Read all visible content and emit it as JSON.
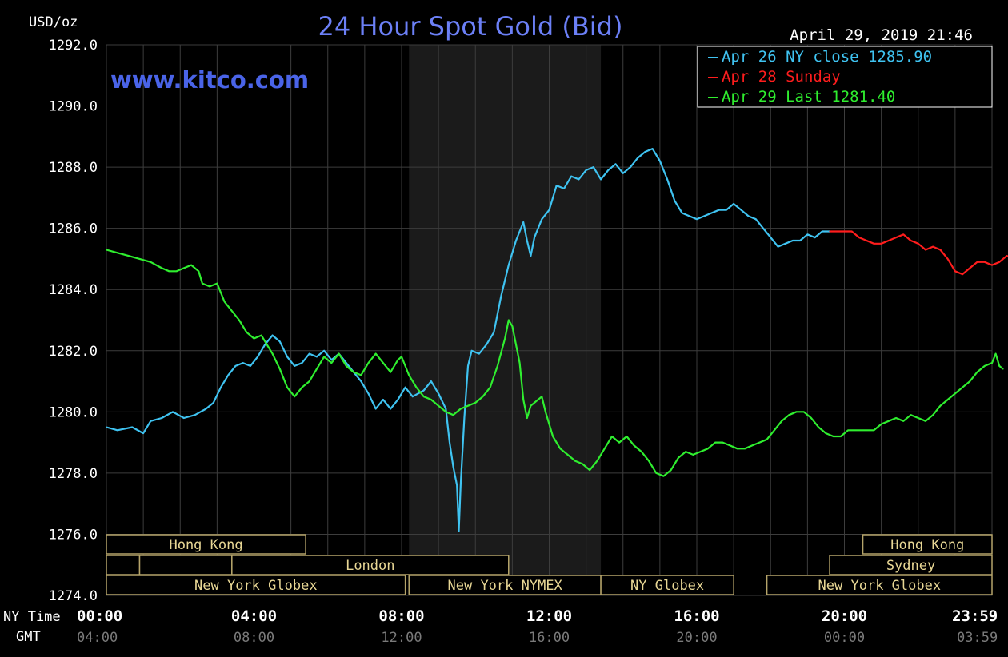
{
  "chart_data": {
    "type": "line",
    "title": "24 Hour Spot Gold (Bid)",
    "watermark": "www.kitco.com",
    "timestamp": "April 29, 2019 21:46",
    "ylabel": "USD/oz",
    "ylim": [
      1274.0,
      1292.0
    ],
    "yticks": [
      1274.0,
      1276.0,
      1278.0,
      1280.0,
      1282.0,
      1284.0,
      1286.0,
      1288.0,
      1290.0,
      1292.0
    ],
    "ytick_labels": [
      "1274.0",
      "1276.0",
      "1278.0",
      "1280.0",
      "1282.0",
      "1284.0",
      "1286.0",
      "1288.0",
      "1290.0",
      "1292.0"
    ],
    "xlim_hours": [
      0,
      24
    ],
    "x_row_label": "NY Time",
    "gmt_row_label": "GMT",
    "xticks_hours": [
      0,
      4,
      8,
      12,
      16,
      20,
      23.983
    ],
    "xtick_labels_ny": [
      "00:00",
      "04:00",
      "08:00",
      "12:00",
      "16:00",
      "20:00",
      "23:59"
    ],
    "xtick_labels_gmt": [
      "04:00",
      "08:00",
      "12:00",
      "16:00",
      "20:00",
      "00:00",
      "03:59"
    ],
    "grid": true,
    "shaded_region_hours": [
      8.2,
      13.4
    ],
    "legend_position": "top-right",
    "legend": [
      {
        "text": "Apr 26 NY close 1285.90",
        "color": "#3fc3f1"
      },
      {
        "text": "Apr 28 Sunday",
        "color": "#ff1d1d"
      },
      {
        "text": "Apr 29 Last 1281.40",
        "color": "#2fee2f"
      }
    ],
    "series": [
      {
        "name": "Apr 26",
        "color": "#3fc3f1",
        "points": [
          [
            0,
            1279.5
          ],
          [
            0.3,
            1279.4
          ],
          [
            0.7,
            1279.5
          ],
          [
            1.0,
            1279.3
          ],
          [
            1.2,
            1279.7
          ],
          [
            1.5,
            1279.8
          ],
          [
            1.8,
            1280.0
          ],
          [
            2.1,
            1279.8
          ],
          [
            2.4,
            1279.9
          ],
          [
            2.7,
            1280.1
          ],
          [
            2.9,
            1280.3
          ],
          [
            3.1,
            1280.8
          ],
          [
            3.3,
            1281.2
          ],
          [
            3.5,
            1281.5
          ],
          [
            3.7,
            1281.6
          ],
          [
            3.9,
            1281.5
          ],
          [
            4.1,
            1281.8
          ],
          [
            4.3,
            1282.2
          ],
          [
            4.5,
            1282.5
          ],
          [
            4.7,
            1282.3
          ],
          [
            4.9,
            1281.8
          ],
          [
            5.1,
            1281.5
          ],
          [
            5.3,
            1281.6
          ],
          [
            5.5,
            1281.9
          ],
          [
            5.7,
            1281.8
          ],
          [
            5.9,
            1282.0
          ],
          [
            6.1,
            1281.7
          ],
          [
            6.3,
            1281.9
          ],
          [
            6.5,
            1281.6
          ],
          [
            6.7,
            1281.3
          ],
          [
            6.9,
            1281.0
          ],
          [
            7.1,
            1280.6
          ],
          [
            7.3,
            1280.1
          ],
          [
            7.5,
            1280.4
          ],
          [
            7.7,
            1280.1
          ],
          [
            7.9,
            1280.4
          ],
          [
            8.1,
            1280.8
          ],
          [
            8.3,
            1280.5
          ],
          [
            8.6,
            1280.7
          ],
          [
            8.8,
            1281.0
          ],
          [
            9.0,
            1280.6
          ],
          [
            9.2,
            1280.1
          ],
          [
            9.3,
            1279.0
          ],
          [
            9.4,
            1278.2
          ],
          [
            9.5,
            1277.6
          ],
          [
            9.55,
            1276.1
          ],
          [
            9.6,
            1277.6
          ],
          [
            9.7,
            1279.8
          ],
          [
            9.8,
            1281.5
          ],
          [
            9.9,
            1282.0
          ],
          [
            10.1,
            1281.9
          ],
          [
            10.3,
            1282.2
          ],
          [
            10.5,
            1282.6
          ],
          [
            10.7,
            1283.8
          ],
          [
            10.9,
            1284.8
          ],
          [
            11.1,
            1285.6
          ],
          [
            11.3,
            1286.2
          ],
          [
            11.4,
            1285.6
          ],
          [
            11.5,
            1285.1
          ],
          [
            11.6,
            1285.7
          ],
          [
            11.8,
            1286.3
          ],
          [
            12.0,
            1286.6
          ],
          [
            12.2,
            1287.4
          ],
          [
            12.4,
            1287.3
          ],
          [
            12.6,
            1287.7
          ],
          [
            12.8,
            1287.6
          ],
          [
            13.0,
            1287.9
          ],
          [
            13.2,
            1288.0
          ],
          [
            13.4,
            1287.6
          ],
          [
            13.6,
            1287.9
          ],
          [
            13.8,
            1288.1
          ],
          [
            14.0,
            1287.8
          ],
          [
            14.2,
            1288.0
          ],
          [
            14.4,
            1288.3
          ],
          [
            14.6,
            1288.5
          ],
          [
            14.8,
            1288.6
          ],
          [
            15.0,
            1288.2
          ],
          [
            15.2,
            1287.6
          ],
          [
            15.4,
            1286.9
          ],
          [
            15.6,
            1286.5
          ],
          [
            15.8,
            1286.4
          ],
          [
            16.0,
            1286.3
          ],
          [
            16.2,
            1286.4
          ],
          [
            16.4,
            1286.5
          ],
          [
            16.6,
            1286.6
          ],
          [
            16.8,
            1286.6
          ],
          [
            17.0,
            1286.8
          ],
          [
            17.2,
            1286.6
          ],
          [
            17.4,
            1286.4
          ],
          [
            17.6,
            1286.3
          ],
          [
            17.8,
            1286.0
          ],
          [
            18.0,
            1285.7
          ],
          [
            18.2,
            1285.4
          ],
          [
            18.4,
            1285.5
          ],
          [
            18.6,
            1285.6
          ],
          [
            18.8,
            1285.6
          ],
          [
            19.0,
            1285.8
          ],
          [
            19.2,
            1285.7
          ],
          [
            19.4,
            1285.9
          ],
          [
            19.6,
            1285.9
          ]
        ]
      },
      {
        "name": "Apr 28",
        "color": "#ff1d1d",
        "points": [
          [
            19.6,
            1285.9
          ],
          [
            20.2,
            1285.9
          ],
          [
            20.4,
            1285.7
          ],
          [
            20.6,
            1285.6
          ],
          [
            20.8,
            1285.5
          ],
          [
            21.0,
            1285.5
          ],
          [
            21.2,
            1285.6
          ],
          [
            21.4,
            1285.7
          ],
          [
            21.6,
            1285.8
          ],
          [
            21.8,
            1285.6
          ],
          [
            22.0,
            1285.5
          ],
          [
            22.2,
            1285.3
          ],
          [
            22.4,
            1285.4
          ],
          [
            22.6,
            1285.3
          ],
          [
            22.8,
            1285.0
          ],
          [
            23.0,
            1284.6
          ],
          [
            23.2,
            1284.5
          ],
          [
            23.4,
            1284.7
          ],
          [
            23.6,
            1284.9
          ],
          [
            23.8,
            1284.9
          ],
          [
            24.0,
            1284.8
          ],
          [
            24.2,
            1284.9
          ],
          [
            24.4,
            1285.1
          ],
          [
            24.6,
            1285.0
          ],
          [
            24.8,
            1285.1
          ],
          [
            25.0,
            1285.2
          ],
          [
            25.2,
            1285.5
          ],
          [
            25.4,
            1285.7
          ],
          [
            25.6,
            1285.7
          ],
          [
            25.8,
            1285.4
          ],
          [
            26.0,
            1285.1
          ],
          [
            26.2,
            1285.2
          ],
          [
            26.4,
            1285.3
          ]
        ]
      },
      {
        "name": "Apr 29",
        "color": "#2fee2f",
        "points": [
          [
            0,
            1285.3
          ],
          [
            0.3,
            1285.2
          ],
          [
            0.6,
            1285.1
          ],
          [
            0.9,
            1285.0
          ],
          [
            1.2,
            1284.9
          ],
          [
            1.5,
            1284.7
          ],
          [
            1.7,
            1284.6
          ],
          [
            1.9,
            1284.6
          ],
          [
            2.1,
            1284.7
          ],
          [
            2.3,
            1284.8
          ],
          [
            2.5,
            1284.6
          ],
          [
            2.6,
            1284.2
          ],
          [
            2.8,
            1284.1
          ],
          [
            3.0,
            1284.2
          ],
          [
            3.2,
            1283.6
          ],
          [
            3.4,
            1283.3
          ],
          [
            3.6,
            1283.0
          ],
          [
            3.8,
            1282.6
          ],
          [
            4.0,
            1282.4
          ],
          [
            4.2,
            1282.5
          ],
          [
            4.3,
            1282.3
          ],
          [
            4.5,
            1281.9
          ],
          [
            4.7,
            1281.4
          ],
          [
            4.9,
            1280.8
          ],
          [
            5.1,
            1280.5
          ],
          [
            5.3,
            1280.8
          ],
          [
            5.5,
            1281.0
          ],
          [
            5.7,
            1281.4
          ],
          [
            5.9,
            1281.8
          ],
          [
            6.1,
            1281.6
          ],
          [
            6.3,
            1281.9
          ],
          [
            6.5,
            1281.5
          ],
          [
            6.7,
            1281.3
          ],
          [
            6.9,
            1281.2
          ],
          [
            7.1,
            1281.6
          ],
          [
            7.3,
            1281.9
          ],
          [
            7.5,
            1281.6
          ],
          [
            7.7,
            1281.3
          ],
          [
            7.9,
            1281.7
          ],
          [
            8.0,
            1281.8
          ],
          [
            8.2,
            1281.2
          ],
          [
            8.4,
            1280.8
          ],
          [
            8.6,
            1280.5
          ],
          [
            8.8,
            1280.4
          ],
          [
            9.0,
            1280.2
          ],
          [
            9.2,
            1280.0
          ],
          [
            9.4,
            1279.9
          ],
          [
            9.6,
            1280.1
          ],
          [
            9.8,
            1280.2
          ],
          [
            10.0,
            1280.3
          ],
          [
            10.2,
            1280.5
          ],
          [
            10.4,
            1280.8
          ],
          [
            10.6,
            1281.5
          ],
          [
            10.8,
            1282.4
          ],
          [
            10.9,
            1283.0
          ],
          [
            11.0,
            1282.8
          ],
          [
            11.2,
            1281.6
          ],
          [
            11.3,
            1280.4
          ],
          [
            11.4,
            1279.8
          ],
          [
            11.5,
            1280.2
          ],
          [
            11.6,
            1280.3
          ],
          [
            11.8,
            1280.5
          ],
          [
            11.9,
            1280.0
          ],
          [
            12.1,
            1279.2
          ],
          [
            12.3,
            1278.8
          ],
          [
            12.5,
            1278.6
          ],
          [
            12.7,
            1278.4
          ],
          [
            12.9,
            1278.3
          ],
          [
            13.1,
            1278.1
          ],
          [
            13.3,
            1278.4
          ],
          [
            13.5,
            1278.8
          ],
          [
            13.7,
            1279.2
          ],
          [
            13.9,
            1279.0
          ],
          [
            14.1,
            1279.2
          ],
          [
            14.3,
            1278.9
          ],
          [
            14.5,
            1278.7
          ],
          [
            14.7,
            1278.4
          ],
          [
            14.9,
            1278.0
          ],
          [
            15.1,
            1277.9
          ],
          [
            15.3,
            1278.1
          ],
          [
            15.5,
            1278.5
          ],
          [
            15.7,
            1278.7
          ],
          [
            15.9,
            1278.6
          ],
          [
            16.1,
            1278.7
          ],
          [
            16.3,
            1278.8
          ],
          [
            16.5,
            1279.0
          ],
          [
            16.7,
            1279.0
          ],
          [
            16.9,
            1278.9
          ],
          [
            17.1,
            1278.8
          ],
          [
            17.3,
            1278.8
          ],
          [
            17.5,
            1278.9
          ],
          [
            17.7,
            1279.0
          ],
          [
            17.9,
            1279.1
          ],
          [
            18.1,
            1279.4
          ],
          [
            18.3,
            1279.7
          ],
          [
            18.5,
            1279.9
          ],
          [
            18.7,
            1280.0
          ],
          [
            18.9,
            1280.0
          ],
          [
            19.1,
            1279.8
          ],
          [
            19.3,
            1279.5
          ],
          [
            19.5,
            1279.3
          ],
          [
            19.7,
            1279.2
          ],
          [
            19.9,
            1279.2
          ],
          [
            20.1,
            1279.4
          ],
          [
            20.8,
            1279.4
          ],
          [
            21.0,
            1279.6
          ],
          [
            21.2,
            1279.7
          ],
          [
            21.4,
            1279.8
          ],
          [
            21.6,
            1279.7
          ],
          [
            21.8,
            1279.9
          ],
          [
            22.0,
            1279.8
          ],
          [
            22.2,
            1279.7
          ],
          [
            22.4,
            1279.9
          ],
          [
            22.6,
            1280.2
          ],
          [
            22.8,
            1280.4
          ],
          [
            23.0,
            1280.6
          ],
          [
            23.2,
            1280.8
          ],
          [
            23.4,
            1281.0
          ],
          [
            23.6,
            1281.3
          ],
          [
            23.8,
            1281.5
          ],
          [
            24.0,
            1281.6
          ],
          [
            24.1,
            1281.9
          ],
          [
            24.2,
            1281.5
          ],
          [
            24.3,
            1281.4
          ]
        ]
      }
    ],
    "sessions": [
      {
        "label": "Hong Kong",
        "row": 0,
        "start": 0,
        "end": 5.4
      },
      {
        "label": "",
        "row": 1,
        "start": 0,
        "end": 0.9
      },
      {
        "label": "",
        "row": 1,
        "start": 0.9,
        "end": 3.4
      },
      {
        "label": "London",
        "row": 1,
        "start": 3.4,
        "end": 10.9
      },
      {
        "label": "New York Globex",
        "row": 2,
        "start": 0,
        "end": 8.1
      },
      {
        "label": "New York NYMEX",
        "row": 2,
        "start": 8.2,
        "end": 13.4
      },
      {
        "label": "NY Globex",
        "row": 2,
        "start": 13.4,
        "end": 17.0
      },
      {
        "label": "Hong Kong",
        "row": 0,
        "start": 20.5,
        "end": 24.0
      },
      {
        "label": "Sydney",
        "row": 1,
        "start": 19.6,
        "end": 24.0
      },
      {
        "label": "New York Globex",
        "row": 2,
        "start": 17.9,
        "end": 24.0
      }
    ]
  }
}
